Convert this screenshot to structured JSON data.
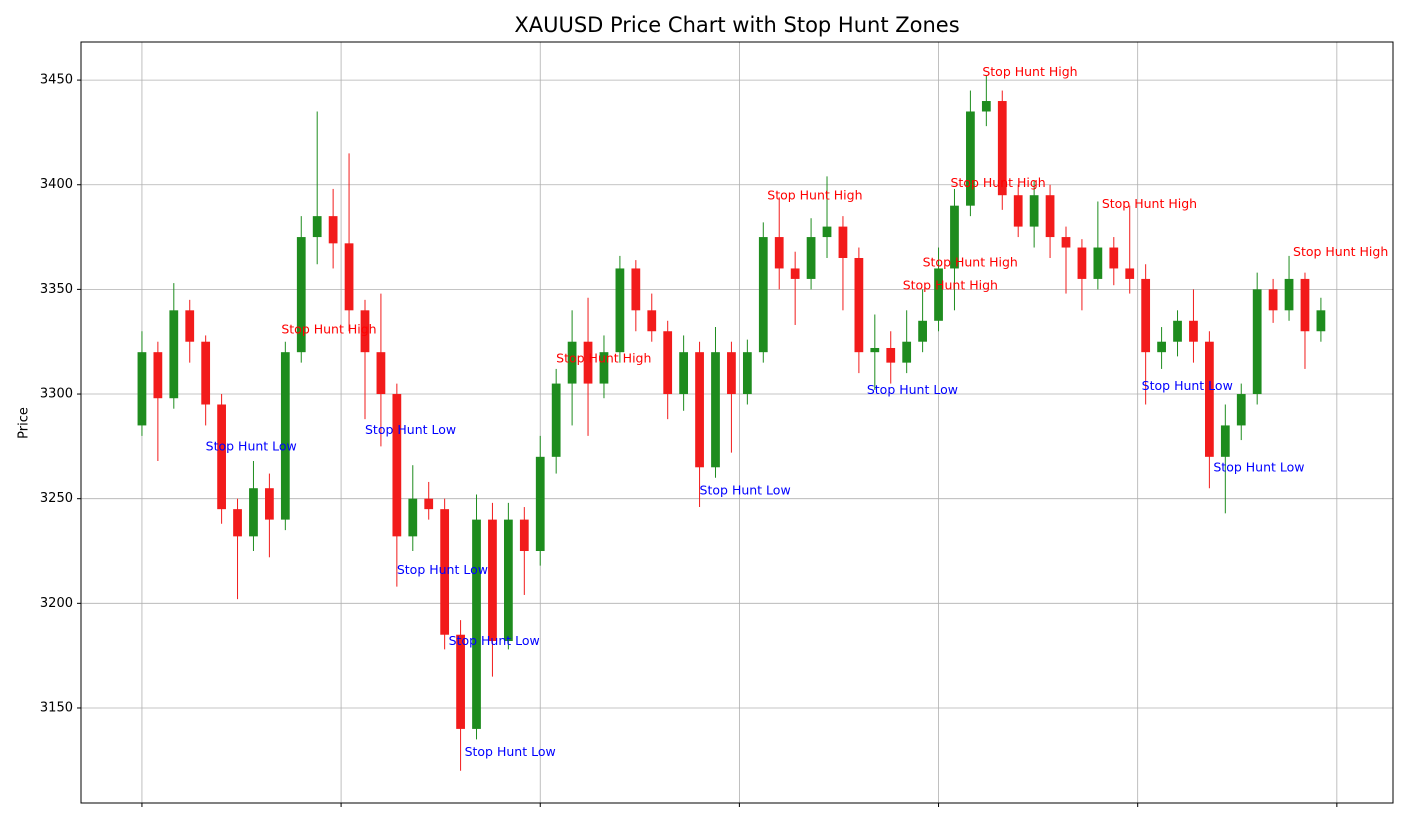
{
  "chart_data": {
    "type": "candlestick",
    "title": "XAUUSD Price Chart with Stop Hunt Zones",
    "y_label": "Price",
    "x": [
      0,
      4,
      8,
      12,
      16,
      20,
      24,
      28,
      32,
      36,
      40,
      44,
      48,
      52,
      56,
      60,
      64,
      68,
      72,
      76,
      80,
      84,
      88,
      92,
      96,
      100,
      104,
      108,
      112,
      116,
      120,
      124,
      128,
      132,
      136,
      140,
      144,
      148,
      152,
      156,
      160,
      164,
      168,
      172,
      176,
      180,
      184,
      188,
      192,
      196,
      200,
      204,
      208,
      212,
      216,
      220,
      224,
      228,
      232,
      236,
      240,
      244,
      248,
      252,
      256,
      260,
      264,
      268,
      272,
      276,
      280,
      284,
      288,
      292,
      296
    ],
    "open": [
      3285,
      3320,
      3298,
      3340,
      3325,
      3295,
      3245,
      3232,
      3255,
      3240,
      3320,
      3375,
      3385,
      3372,
      3340,
      3320,
      3300,
      3232,
      3250,
      3245,
      3185,
      3140,
      3240,
      3182,
      3240,
      3225,
      3270,
      3305,
      3325,
      3305,
      3320,
      3360,
      3340,
      3330,
      3300,
      3320,
      3265,
      3320,
      3300,
      3320,
      3375,
      3360,
      3355,
      3375,
      3380,
      3365,
      3320,
      3322,
      3315,
      3325,
      3335,
      3360,
      3390,
      3435,
      3440,
      3395,
      3380,
      3395,
      3375,
      3370,
      3355,
      3370,
      3360,
      3355,
      3320,
      3325,
      3335,
      3325,
      3270,
      3285,
      3300,
      3350,
      3340,
      3355,
      3330
    ],
    "high": [
      3330,
      3325,
      3353,
      3345,
      3328,
      3300,
      3250,
      3268,
      3262,
      3325,
      3385,
      3435,
      3398,
      3415,
      3345,
      3348,
      3305,
      3266,
      3258,
      3250,
      3192,
      3252,
      3248,
      3248,
      3246,
      3280,
      3312,
      3340,
      3346,
      3328,
      3366,
      3364,
      3348,
      3335,
      3328,
      3325,
      3332,
      3325,
      3326,
      3382,
      3394,
      3368,
      3384,
      3404,
      3385,
      3370,
      3338,
      3330,
      3340,
      3350,
      3370,
      3398,
      3445,
      3452,
      3445,
      3400,
      3402,
      3400,
      3380,
      3374,
      3392,
      3375,
      3390,
      3362,
      3332,
      3340,
      3350,
      3330,
      3295,
      3305,
      3358,
      3355,
      3366,
      3358,
      3346
    ],
    "low": [
      3280,
      3268,
      3293,
      3315,
      3285,
      3238,
      3202,
      3225,
      3222,
      3235,
      3315,
      3362,
      3360,
      3330,
      3288,
      3275,
      3208,
      3225,
      3240,
      3178,
      3120,
      3135,
      3165,
      3178,
      3204,
      3218,
      3262,
      3285,
      3280,
      3298,
      3315,
      3330,
      3325,
      3288,
      3292,
      3246,
      3260,
      3272,
      3295,
      3315,
      3350,
      3333,
      3350,
      3365,
      3340,
      3310,
      3302,
      3305,
      3310,
      3320,
      3330,
      3340,
      3385,
      3428,
      3388,
      3375,
      3370,
      3365,
      3348,
      3340,
      3350,
      3352,
      3348,
      3295,
      3312,
      3318,
      3315,
      3255,
      3243,
      3278,
      3295,
      3334,
      3335,
      3312,
      3325
    ],
    "close": [
      3320,
      3298,
      3340,
      3325,
      3295,
      3245,
      3232,
      3255,
      3240,
      3320,
      3375,
      3385,
      3372,
      3340,
      3320,
      3300,
      3232,
      3250,
      3245,
      3185,
      3140,
      3240,
      3182,
      3240,
      3225,
      3270,
      3305,
      3325,
      3305,
      3320,
      3360,
      3340,
      3330,
      3300,
      3320,
      3265,
      3320,
      3300,
      3320,
      3375,
      3360,
      3355,
      3375,
      3380,
      3365,
      3320,
      3322,
      3315,
      3325,
      3335,
      3360,
      3390,
      3435,
      3440,
      3395,
      3380,
      3395,
      3375,
      3370,
      3355,
      3370,
      3360,
      3355,
      3320,
      3325,
      3335,
      3325,
      3270,
      3285,
      3300,
      3350,
      3340,
      3355,
      3330,
      3340
    ],
    "up_color": "#1e8c1e",
    "down_color": "#f21b1b",
    "xlim": [
      -15.3,
      314.1
    ],
    "xticks": [
      0,
      50,
      100,
      150,
      200,
      250,
      300
    ],
    "ylim": [
      3104.6,
      3468.2
    ],
    "yticks": [
      3150,
      3200,
      3250,
      3300,
      3350,
      3400,
      3450
    ],
    "grid": true,
    "annotations": [
      {
        "text": "Stop Hunt Low",
        "x": 16,
        "y": 3273,
        "color": "#0000ff"
      },
      {
        "text": "Stop Hunt Low",
        "x": 56,
        "y": 3281,
        "color": "#0000ff"
      },
      {
        "text": "Stop Hunt Low",
        "x": 64,
        "y": 3214,
        "color": "#0000ff"
      },
      {
        "text": "Stop Hunt Low",
        "x": 77,
        "y": 3180,
        "color": "#0000ff"
      },
      {
        "text": "Stop Hunt Low",
        "x": 81,
        "y": 3127,
        "color": "#0000ff"
      },
      {
        "text": "Stop Hunt Low",
        "x": 140,
        "y": 3252,
        "color": "#0000ff"
      },
      {
        "text": "Stop Hunt Low",
        "x": 182,
        "y": 3300,
        "color": "#0000ff"
      },
      {
        "text": "Stop Hunt Low",
        "x": 251,
        "y": 3302,
        "color": "#0000ff"
      },
      {
        "text": "Stop Hunt Low",
        "x": 269,
        "y": 3263,
        "color": "#0000ff"
      },
      {
        "text": "Stop Hunt High",
        "x": 35,
        "y": 3329,
        "color": "#ff0000"
      },
      {
        "text": "Stop Hunt High",
        "x": 104,
        "y": 3315,
        "color": "#ff0000"
      },
      {
        "text": "Stop Hunt High",
        "x": 157,
        "y": 3393,
        "color": "#ff0000"
      },
      {
        "text": "Stop Hunt High",
        "x": 191,
        "y": 3350,
        "color": "#ff0000"
      },
      {
        "text": "Stop Hunt High",
        "x": 196,
        "y": 3361,
        "color": "#ff0000"
      },
      {
        "text": "Stop Hunt High",
        "x": 203,
        "y": 3399,
        "color": "#ff0000"
      },
      {
        "text": "Stop Hunt High",
        "x": 211,
        "y": 3452,
        "color": "#ff0000"
      },
      {
        "text": "Stop Hunt High",
        "x": 241,
        "y": 3389,
        "color": "#ff0000"
      },
      {
        "text": "Stop Hunt High",
        "x": 289,
        "y": 3366,
        "color": "#ff0000"
      }
    ]
  }
}
